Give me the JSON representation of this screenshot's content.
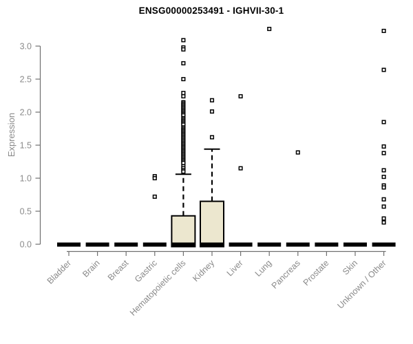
{
  "chart_data": {
    "type": "boxplot",
    "title": "ENSG00000253491 - IGHVII-30-1",
    "xlabel": "",
    "ylabel": "Expression",
    "ylim": [
      0,
      3.3
    ],
    "yticks": [
      0.0,
      0.5,
      1.0,
      1.5,
      2.0,
      2.5,
      3.0
    ],
    "grid": "off",
    "legend": "none",
    "categories": [
      "Bladder",
      "Brain",
      "Breast",
      "Gastric",
      "Hematopoietic cells",
      "Kidney",
      "Liver",
      "Lung",
      "Pancreas",
      "Prostate",
      "Skin",
      "Unknown / Other"
    ],
    "boxes": [
      {
        "category": "Bladder",
        "q1": 0,
        "median": 0,
        "q3": 0,
        "whisker_low": 0,
        "whisker_high": 0,
        "outliers": []
      },
      {
        "category": "Brain",
        "q1": 0,
        "median": 0,
        "q3": 0,
        "whisker_low": 0,
        "whisker_high": 0,
        "outliers": []
      },
      {
        "category": "Breast",
        "q1": 0,
        "median": 0,
        "q3": 0,
        "whisker_low": 0,
        "whisker_high": 0,
        "outliers": []
      },
      {
        "category": "Gastric",
        "q1": 0,
        "median": 0,
        "q3": 0,
        "whisker_low": 0,
        "whisker_high": 0,
        "outliers": [
          1.03,
          1.0,
          0.72
        ]
      },
      {
        "category": "Hematopoietic cells",
        "q1": 0,
        "median": 0.02,
        "q3": 0.43,
        "whisker_low": 0,
        "whisker_high": 1.06,
        "outliers": [
          3.09,
          2.98,
          2.95,
          2.74,
          2.5,
          2.29,
          2.24,
          2.15,
          2.13,
          2.11,
          2.09,
          2.07,
          2.05,
          2.03,
          2.01,
          1.99,
          1.97,
          1.95,
          1.91,
          1.89,
          1.87,
          1.85,
          1.83,
          1.81,
          1.77,
          1.75,
          1.73,
          1.71,
          1.69,
          1.67,
          1.65,
          1.63,
          1.61,
          1.59,
          1.57,
          1.55,
          1.53,
          1.51,
          1.49,
          1.47,
          1.45,
          1.43,
          1.41,
          1.39,
          1.37,
          1.35,
          1.33,
          1.31,
          1.29,
          1.27,
          1.25,
          1.23,
          1.18,
          1.15,
          1.12,
          1.1
        ]
      },
      {
        "category": "Kidney",
        "q1": 0,
        "median": 0.02,
        "q3": 0.65,
        "whisker_low": 0,
        "whisker_high": 1.44,
        "outliers": [
          2.18,
          2.01,
          1.62
        ]
      },
      {
        "category": "Liver",
        "q1": 0,
        "median": 0,
        "q3": 0,
        "whisker_low": 0,
        "whisker_high": 0,
        "outliers": [
          2.24,
          1.15
        ]
      },
      {
        "category": "Lung",
        "q1": 0,
        "median": 0,
        "q3": 0,
        "whisker_low": 0,
        "whisker_high": 0,
        "outliers": [
          3.26
        ]
      },
      {
        "category": "Pancreas",
        "q1": 0,
        "median": 0,
        "q3": 0,
        "whisker_low": 0,
        "whisker_high": 0,
        "outliers": [
          1.39
        ]
      },
      {
        "category": "Prostate",
        "q1": 0,
        "median": 0,
        "q3": 0,
        "whisker_low": 0,
        "whisker_high": 0,
        "outliers": []
      },
      {
        "category": "Skin",
        "q1": 0,
        "median": 0,
        "q3": 0,
        "whisker_low": 0,
        "whisker_high": 0,
        "outliers": []
      },
      {
        "category": "Unknown / Other",
        "q1": 0,
        "median": 0,
        "q3": 0,
        "whisker_low": 0,
        "whisker_high": 0,
        "outliers": [
          3.23,
          2.64,
          1.85,
          1.48,
          1.38,
          1.12,
          1.02,
          0.89,
          0.86,
          0.68,
          0.57,
          0.39,
          0.33
        ]
      }
    ],
    "colors": {
      "box_fill": "#ece7cf",
      "box_border": "#000000",
      "median": "#000000",
      "outlier": "#000000",
      "axis_line": "#6f6f6f",
      "tick_label": "#8a8a8a",
      "title": "#000000",
      "background": "#ffffff"
    }
  }
}
